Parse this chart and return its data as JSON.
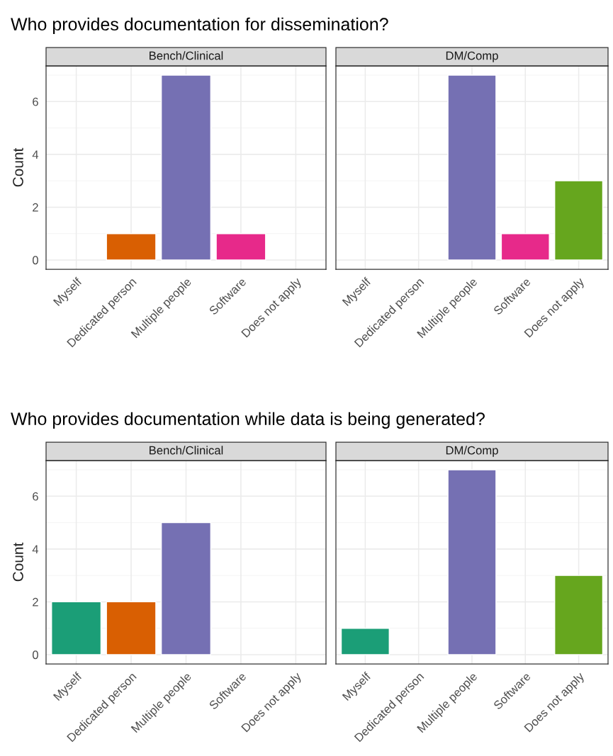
{
  "chart_data": [
    {
      "type": "bar",
      "title": "Who provides documentation for dissemination?",
      "subtitle": "Bench/Clinical",
      "ylabel": "Count",
      "categories": [
        "Myself",
        "Dedicated person",
        "Multiple people",
        "Software",
        "Does not apply"
      ],
      "values": [
        null,
        1,
        7,
        1,
        null
      ],
      "colors": [
        "#1b9e77",
        "#d95f02",
        "#7570b3",
        "#e7298a",
        "#66a61e"
      ],
      "ylim": [
        -0.35,
        7.35
      ],
      "yticks": [
        0,
        2,
        4,
        6
      ],
      "grid": true,
      "legend": false
    },
    {
      "type": "bar",
      "subtitle": "DM/Comp",
      "categories": [
        "Myself",
        "Dedicated person",
        "Multiple people",
        "Software",
        "Does not apply"
      ],
      "values": [
        null,
        null,
        7,
        1,
        3
      ],
      "colors": [
        "#1b9e77",
        "#d95f02",
        "#7570b3",
        "#e7298a",
        "#66a61e"
      ],
      "ylim": [
        -0.35,
        7.35
      ],
      "yticks": [
        0,
        2,
        4,
        6
      ],
      "grid": true,
      "legend": false,
      "tick_labels": "x"
    },
    {
      "type": "bar",
      "title": "Who provides documentation while data is being generated?",
      "subtitle": "Bench/Clinical",
      "ylabel": "Count",
      "categories": [
        "Myself",
        "Dedicated person",
        "Multiple people",
        "Software",
        "Does not apply"
      ],
      "values": [
        2,
        2,
        5,
        null,
        null
      ],
      "colors": [
        "#1b9e77",
        "#d95f02",
        "#7570b3",
        "#e7298a",
        "#66a61e"
      ],
      "ylim": [
        -0.35,
        7.35
      ],
      "yticks": [
        0,
        2,
        4,
        6
      ],
      "grid": true,
      "legend": false
    },
    {
      "type": "bar",
      "subtitle": "DM/Comp",
      "categories": [
        "Myself",
        "Dedicated person",
        "Multiple people",
        "Software",
        "Does not apply"
      ],
      "values": [
        1,
        null,
        7,
        null,
        3
      ],
      "colors": [
        "#1b9e77",
        "#d95f02",
        "#7570b3",
        "#e7298a",
        "#66a61e"
      ],
      "ylim": [
        -0.35,
        7.35
      ],
      "yticks": [
        0,
        2,
        4,
        6
      ],
      "grid": true,
      "legend": false,
      "tick_labels": "x"
    }
  ]
}
